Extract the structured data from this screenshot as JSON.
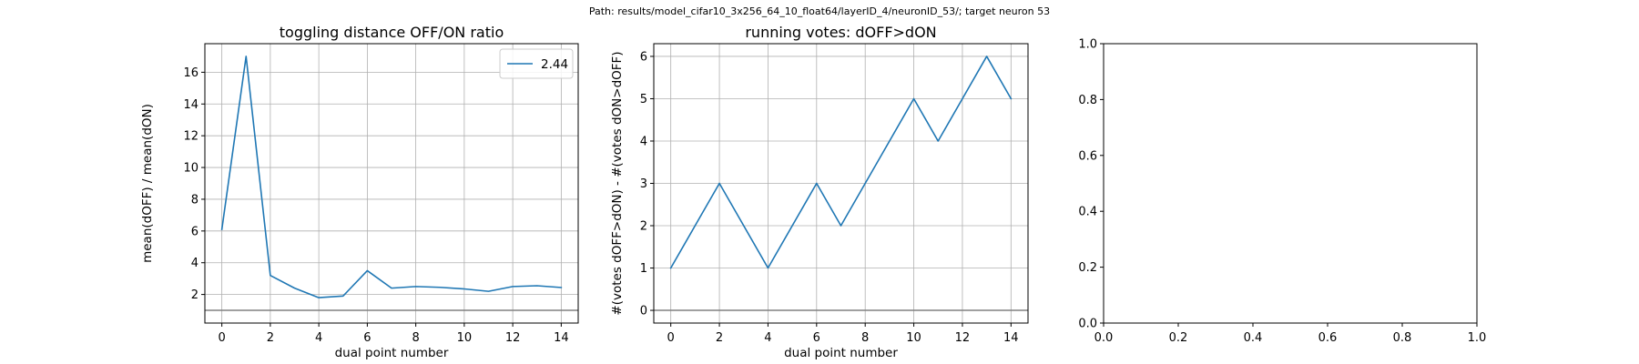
{
  "figure": {
    "suptitle": "Path: results/model_cifar10_3x256_64_10_float64/layerID_4/neuronID_53/; target neuron 53"
  },
  "chart_data": [
    {
      "type": "line",
      "title": "toggling distance OFF/ON ratio",
      "xlabel": "dual point number",
      "ylabel": "mean(dOFF) / mean(dON)",
      "xlim": [
        -0.7,
        14.7
      ],
      "ylim": [
        0.2,
        17.8
      ],
      "xticks": [
        0,
        2,
        4,
        6,
        8,
        10,
        12,
        14
      ],
      "yticks": [
        2,
        4,
        6,
        8,
        10,
        12,
        14,
        16
      ],
      "grid": true,
      "legend": "upper right",
      "reference_line": {
        "y": 1,
        "color": "#808080"
      },
      "series": [
        {
          "name": "2.44",
          "color": "#1f77b4",
          "x": [
            0,
            1,
            2,
            3,
            4,
            5,
            6,
            7,
            8,
            9,
            10,
            11,
            12,
            13,
            14
          ],
          "y": [
            6.1,
            17.0,
            3.2,
            2.4,
            1.8,
            1.9,
            3.5,
            2.4,
            2.5,
            2.45,
            2.35,
            2.2,
            2.5,
            2.55,
            2.44
          ]
        }
      ]
    },
    {
      "type": "line",
      "title": "running votes: dOFF>dON",
      "xlabel": "dual point number",
      "ylabel": "#(votes dOFF>dON) - #(votes dON>dOFF)",
      "xlim": [
        -0.7,
        14.7
      ],
      "ylim": [
        -0.3,
        6.3
      ],
      "xticks": [
        0,
        2,
        4,
        6,
        8,
        10,
        12,
        14
      ],
      "yticks": [
        0,
        1,
        2,
        3,
        4,
        5,
        6
      ],
      "grid": true,
      "legend": "none",
      "reference_line": {
        "y": 0,
        "color": "#808080"
      },
      "series": [
        {
          "color": "#1f77b4",
          "x": [
            0,
            1,
            2,
            3,
            4,
            5,
            6,
            7,
            8,
            9,
            10,
            11,
            12,
            13,
            14
          ],
          "y": [
            1,
            2,
            3,
            2,
            1,
            2,
            3,
            2,
            3,
            4,
            5,
            4,
            5,
            6,
            5
          ]
        }
      ]
    },
    {
      "type": "line",
      "title": "",
      "xlabel": "",
      "ylabel": "",
      "xlim": [
        0,
        1
      ],
      "ylim": [
        0,
        1
      ],
      "xticks": [
        0.0,
        0.2,
        0.4,
        0.6,
        0.8,
        1.0
      ],
      "yticks": [
        0.0,
        0.2,
        0.4,
        0.6,
        0.8,
        1.0
      ],
      "tick_format": "fixed1",
      "grid": false,
      "legend": "none",
      "series": []
    }
  ]
}
